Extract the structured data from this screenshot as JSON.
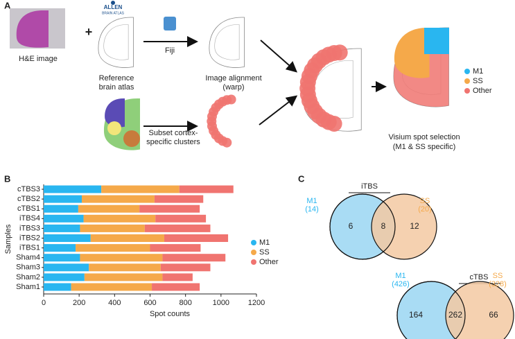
{
  "panel_labels": [
    "A",
    "B",
    "C"
  ],
  "panel_a": {
    "he_label": "H&E image",
    "plus": "+",
    "logo": [
      "ALLEN",
      "BRAIN ATLAS"
    ],
    "reference_label": [
      "Reference",
      "brain atlas"
    ],
    "tool": "Fiji",
    "alignment_label": [
      "Image alignment",
      "(warp)"
    ],
    "subset_label": [
      "Subset cortex-",
      "specific clusters"
    ],
    "selection_label": [
      "Visium spot selection",
      "(M1 & SS specific)"
    ],
    "legend": [
      {
        "name": "M1",
        "color": "#29b6f0"
      },
      {
        "name": "SS",
        "color": "#f5a94a"
      },
      {
        "name": "Other",
        "color": "#f07470"
      }
    ]
  },
  "chart_data": {
    "type": "bar",
    "orientation": "horizontal",
    "stacked": true,
    "categories": [
      "cTBS3",
      "cTBS2",
      "cTBS1",
      "iTBS4",
      "iTBS3",
      "iTBS2",
      "iTBS1",
      "Sham4",
      "Sham3",
      "Sham2",
      "Sham1"
    ],
    "series": [
      {
        "name": "M1",
        "color": "#29b6f0",
        "values": [
          325,
          215,
          195,
          225,
          205,
          265,
          180,
          205,
          255,
          230,
          155
        ]
      },
      {
        "name": "SS",
        "color": "#f5a94a",
        "values": [
          440,
          410,
          345,
          405,
          365,
          415,
          420,
          465,
          405,
          440,
          455
        ]
      },
      {
        "name": "Other",
        "color": "#f07470",
        "values": [
          305,
          275,
          340,
          285,
          370,
          360,
          285,
          355,
          280,
          170,
          270
        ]
      }
    ],
    "xlim": [
      0,
      1200
    ],
    "xticks": [
      0,
      200,
      400,
      600,
      800,
      1000,
      1200
    ],
    "xlabel": "Spot counts",
    "ylabel": "Samples",
    "legend": "right"
  },
  "panel_c": {
    "venns": [
      {
        "title": "iTBS",
        "left_name": "M1",
        "left_total": "(14)",
        "right_name": "SS",
        "right_total": "(20)",
        "left_only": 6,
        "both": 8,
        "right_only": 12
      },
      {
        "title": "cTBS",
        "left_name": "M1",
        "left_total": "(426)",
        "right_name": "SS",
        "right_total": "(328)",
        "left_only": 164,
        "both": 262,
        "right_only": 66
      }
    ]
  }
}
